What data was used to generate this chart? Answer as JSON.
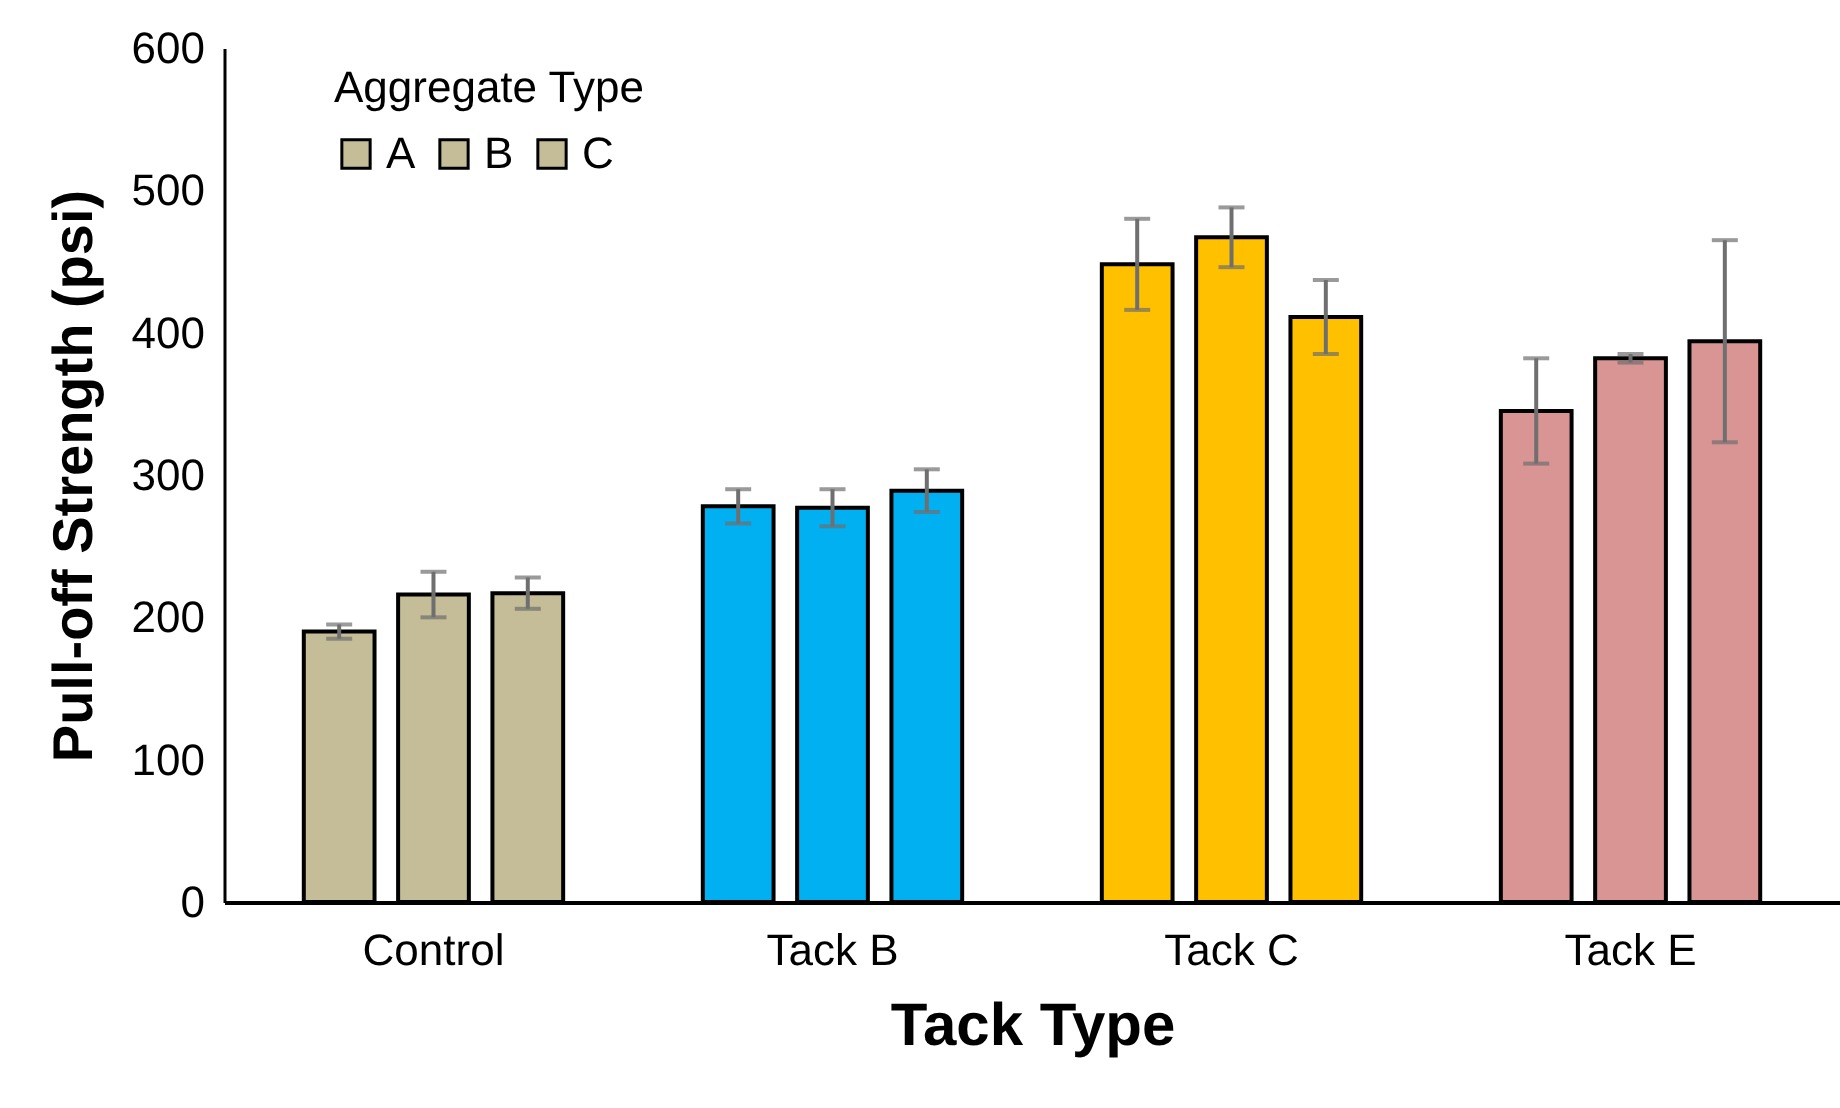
{
  "chart_data": {
    "type": "bar",
    "xlabel": "Tack Type",
    "ylabel": "Pull-off Strength (psi)",
    "legend_title": "Aggregate Type",
    "legend": "top left",
    "grid": false,
    "categories": [
      "Control",
      "Tack B",
      "Tack C",
      "Tack E"
    ],
    "ylim": [
      0,
      600
    ],
    "yticks": [
      0,
      100,
      200,
      300,
      400,
      500,
      600
    ],
    "series": [
      {
        "name": "A",
        "colors": [
          "#c4bd97",
          "#00b0f0",
          "#ffc000",
          "#d99594"
        ],
        "values": [
          190,
          278,
          448,
          345
        ],
        "errors": [
          5,
          12,
          32,
          37
        ]
      },
      {
        "name": "B",
        "colors": [
          "#c4bd97",
          "#00b0f0",
          "#ffc000",
          "#d99594"
        ],
        "values": [
          216,
          277,
          467,
          382
        ],
        "errors": [
          16,
          13,
          21,
          3
        ]
      },
      {
        "name": "C",
        "colors": [
          "#c4bd97",
          "#00b0f0",
          "#ffc000",
          "#d99594"
        ],
        "values": [
          217,
          289,
          411,
          394
        ],
        "errors": [
          11,
          15,
          26,
          71
        ]
      }
    ]
  }
}
